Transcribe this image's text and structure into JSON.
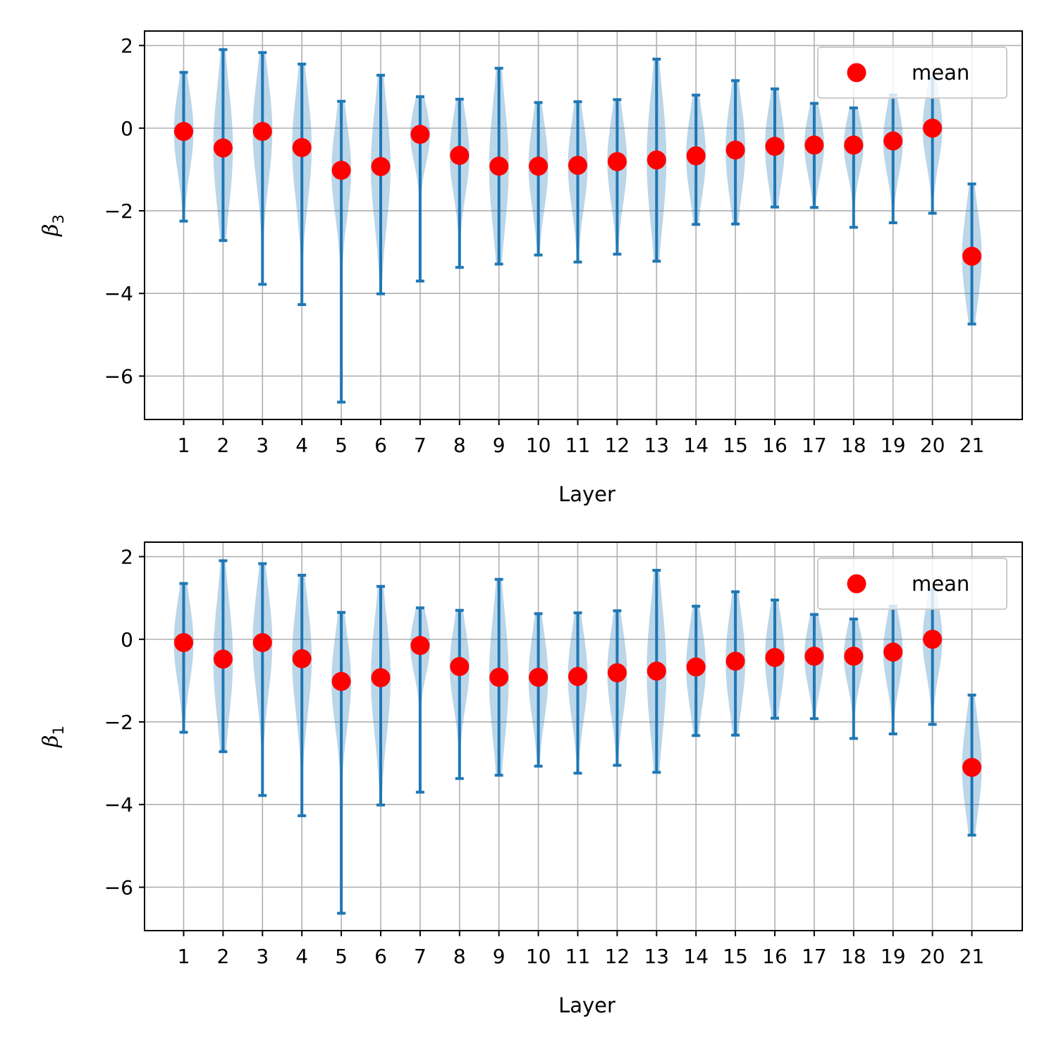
{
  "colors": {
    "mean": "#ff0000",
    "bars": "#1f77b4",
    "violin": "#1f77b4",
    "grid": "#b0b0b0"
  },
  "chart_data": [
    {
      "type": "violin",
      "title": "",
      "xlabel": "Layer",
      "ylabel": "β",
      "ylabel_sub": "3",
      "categories": [
        "1",
        "2",
        "3",
        "4",
        "5",
        "6",
        "7",
        "8",
        "9",
        "10",
        "11",
        "12",
        "13",
        "14",
        "15",
        "16",
        "17",
        "18",
        "19",
        "20",
        "21"
      ],
      "series": [
        {
          "name": "mean",
          "values": [
            -0.08,
            -0.48,
            -0.08,
            -0.47,
            -1.02,
            -0.93,
            -0.15,
            -0.66,
            -0.92,
            -0.92,
            -0.9,
            -0.81,
            -0.77,
            -0.67,
            -0.53,
            -0.44,
            -0.41,
            -0.41,
            -0.31,
            0.0,
            -3.1
          ]
        },
        {
          "name": "max",
          "values": [
            1.35,
            1.9,
            1.83,
            1.55,
            0.65,
            1.28,
            0.76,
            0.7,
            1.45,
            0.62,
            0.64,
            0.69,
            1.67,
            0.8,
            1.15,
            0.95,
            0.6,
            0.49,
            0.8,
            1.2,
            -1.35
          ]
        },
        {
          "name": "min",
          "values": [
            -2.25,
            -2.72,
            -3.78,
            -4.27,
            -6.63,
            -4.01,
            -3.7,
            -3.37,
            -3.29,
            -3.07,
            -3.24,
            -3.05,
            -3.22,
            -2.33,
            -2.32,
            -1.91,
            -1.92,
            -2.4,
            -2.29,
            -2.06,
            -4.74
          ]
        }
      ],
      "ylim": [
        -7.05,
        2.35
      ],
      "yticks": [
        2,
        0,
        -2,
        -4,
        -6
      ],
      "ytick_labels": [
        "2",
        "0",
        "−2",
        "−4",
        "−6"
      ],
      "grid": true,
      "legend": {
        "position": "top-right",
        "entries": [
          "mean"
        ]
      }
    },
    {
      "type": "violin",
      "title": "",
      "xlabel": "Layer",
      "ylabel": "β",
      "ylabel_sub": "1",
      "categories": [
        "1",
        "2",
        "3",
        "4",
        "5",
        "6",
        "7",
        "8",
        "9",
        "10",
        "11",
        "12",
        "13",
        "14",
        "15",
        "16",
        "17",
        "18",
        "19",
        "20",
        "21"
      ],
      "series": [
        {
          "name": "mean",
          "values": [
            -0.08,
            -0.48,
            -0.08,
            -0.47,
            -1.02,
            -0.93,
            -0.15,
            -0.66,
            -0.92,
            -0.92,
            -0.9,
            -0.81,
            -0.77,
            -0.67,
            -0.53,
            -0.44,
            -0.41,
            -0.41,
            -0.31,
            0.0,
            -3.1
          ]
        },
        {
          "name": "max",
          "values": [
            1.35,
            1.9,
            1.83,
            1.55,
            0.65,
            1.28,
            0.76,
            0.7,
            1.45,
            0.62,
            0.64,
            0.69,
            1.67,
            0.8,
            1.15,
            0.95,
            0.6,
            0.49,
            0.8,
            1.2,
            -1.35
          ]
        },
        {
          "name": "min",
          "values": [
            -2.25,
            -2.72,
            -3.78,
            -4.27,
            -6.63,
            -4.01,
            -3.7,
            -3.37,
            -3.29,
            -3.07,
            -3.24,
            -3.05,
            -3.22,
            -2.33,
            -2.32,
            -1.91,
            -1.92,
            -2.4,
            -2.29,
            -2.06,
            -4.74
          ]
        }
      ],
      "ylim": [
        -7.05,
        2.35
      ],
      "yticks": [
        2,
        0,
        -2,
        -4,
        -6
      ],
      "ytick_labels": [
        "2",
        "0",
        "−2",
        "−4",
        "−6"
      ],
      "grid": true,
      "legend": {
        "position": "top-right",
        "entries": [
          "mean"
        ]
      }
    }
  ]
}
